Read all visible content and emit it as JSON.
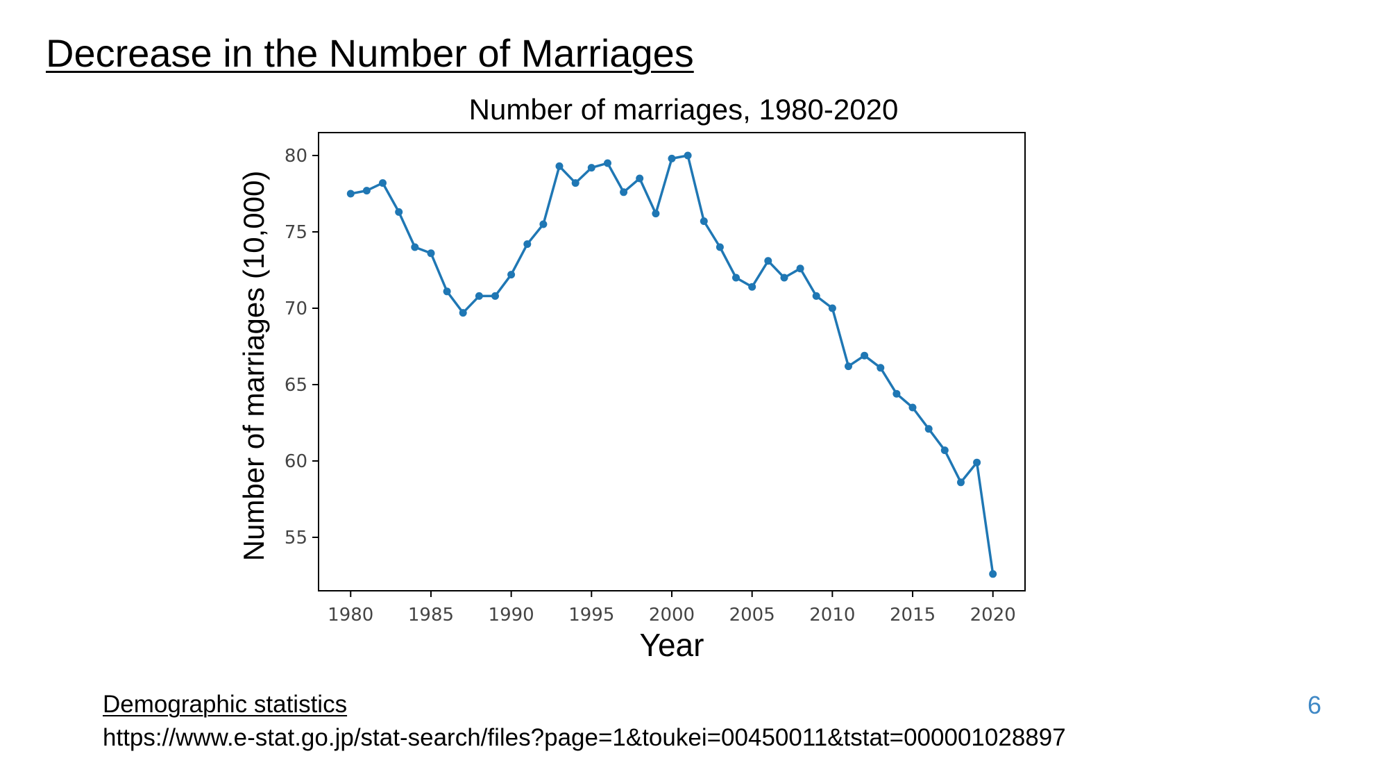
{
  "slide": {
    "title": "Decrease in the Number of Marriages",
    "source_label": "Demographic statistics",
    "source_url": "https://www.e-stat.go.jp/stat-search/files?page=1&toukei=00450011&tstat=000001028897",
    "page_number": "6"
  },
  "colors": {
    "series": "#1f77b4",
    "page_number": "#3f88c5",
    "axis": "#000000",
    "tick_label": "#444444"
  },
  "chart_data": {
    "type": "line",
    "title": "Number of marriages, 1980-2020",
    "xlabel": "Year",
    "ylabel": "Number of marriages (10,000)",
    "xlim": [
      1978,
      2022
    ],
    "ylim": [
      51.5,
      81.5
    ],
    "xticks": [
      1980,
      1985,
      1990,
      1995,
      2000,
      2005,
      2010,
      2015,
      2020
    ],
    "yticks": [
      55,
      60,
      65,
      70,
      75,
      80
    ],
    "grid": false,
    "markers": true,
    "series": [
      {
        "x": [
          1980,
          1981,
          1982,
          1983,
          1984,
          1985,
          1986,
          1987,
          1988,
          1989,
          1990,
          1991,
          1992,
          1993,
          1994,
          1995,
          1996,
          1997,
          1998,
          1999,
          2000,
          2001,
          2002,
          2003,
          2004,
          2005,
          2006,
          2007,
          2008,
          2009,
          2010,
          2011,
          2012,
          2013,
          2014,
          2015,
          2016,
          2017,
          2018,
          2019,
          2020
        ],
        "values": [
          77.5,
          77.7,
          78.2,
          76.3,
          74.0,
          73.6,
          71.1,
          69.7,
          70.8,
          70.8,
          72.2,
          74.2,
          75.5,
          79.3,
          78.2,
          79.2,
          79.5,
          77.6,
          78.5,
          76.2,
          79.8,
          80.0,
          75.7,
          74.0,
          72.0,
          71.4,
          73.1,
          72.0,
          72.6,
          70.8,
          70.0,
          66.2,
          66.9,
          66.1,
          64.4,
          63.5,
          62.1,
          60.7,
          58.6,
          59.9,
          52.6
        ]
      }
    ]
  }
}
